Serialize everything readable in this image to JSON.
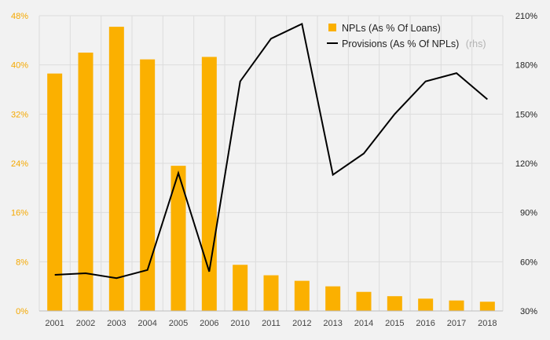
{
  "chart_data": {
    "type": "bar+line",
    "categories": [
      "2001",
      "2002",
      "2003",
      "2004",
      "2005",
      "2006",
      "2010",
      "2011",
      "2012",
      "2013",
      "2014",
      "2015",
      "2016",
      "2017",
      "2018"
    ],
    "series": [
      {
        "name": "NPLs (As % Of Loans)",
        "type": "bar",
        "axis": "left",
        "color": "#fbb000",
        "values": [
          38.6,
          42.0,
          46.2,
          40.9,
          23.6,
          41.3,
          7.5,
          5.8,
          4.9,
          4.0,
          3.1,
          2.4,
          2.0,
          1.7,
          1.5
        ]
      },
      {
        "name": "Provisions (As % Of NPLs)",
        "name_suffix": "(rhs)",
        "type": "line",
        "axis": "right",
        "color": "#000000",
        "values": [
          52,
          53,
          50,
          55,
          114,
          54,
          170,
          196,
          205,
          113,
          126,
          150,
          170,
          175,
          159
        ]
      }
    ],
    "left_axis": {
      "ylim": [
        0,
        48
      ],
      "ticks": [
        "0%",
        "8%",
        "16%",
        "24%",
        "32%",
        "40%",
        "48%"
      ],
      "tick_values": [
        0,
        8,
        16,
        24,
        32,
        40,
        48
      ]
    },
    "right_axis": {
      "ylim": [
        30,
        210
      ],
      "ticks": [
        "30%",
        "60%",
        "90%",
        "120%",
        "150%",
        "180%",
        "210%"
      ],
      "tick_values": [
        30,
        60,
        90,
        120,
        150,
        180,
        210
      ]
    },
    "grid": true,
    "legend_position": "top-right"
  }
}
